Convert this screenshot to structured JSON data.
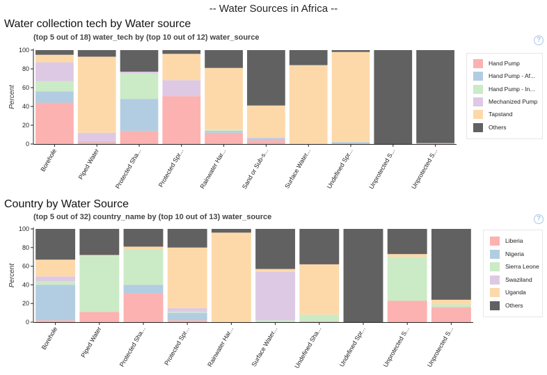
{
  "page_title": "-- Water Sources in Africa --",
  "colors": {
    "hand_pump": "#fcb2b0",
    "blue": "#b2cde2",
    "green": "#cbeac6",
    "purple": "#dec9e4",
    "orange": "#fdd9aa",
    "others": "#616161"
  },
  "chart_data": [
    {
      "type": "bar",
      "stacked": true,
      "title": "Water collection tech by Water source",
      "subtitle": "(top 5 out of 18) water_tech by (top 10 out of 12) water_source",
      "ylabel": "Percent",
      "ylim": [
        0,
        100
      ],
      "yticks": [
        0,
        20,
        40,
        60,
        80,
        100
      ],
      "legend_position": "right",
      "categories": [
        "Borehole",
        "Piped Water",
        "Protected Sha...",
        "Protected Spr...",
        "Rainwater Har...",
        "Sand or Sub-s...",
        "Surface Water...",
        "Undefined Spr...",
        "Unprotected S...",
        "Unprotected S..."
      ],
      "series": [
        {
          "name": "Hand Pump",
          "color": "#fcb2b0",
          "values": [
            44,
            2,
            14,
            51,
            12,
            4,
            0,
            0,
            0,
            1
          ]
        },
        {
          "name": "Hand Pump - Af...",
          "color": "#b2cde2",
          "values": [
            12,
            1,
            34,
            0,
            2,
            2,
            0,
            2,
            0,
            0
          ]
        },
        {
          "name": "Hand Pump - In...",
          "color": "#cbeac6",
          "values": [
            11,
            0,
            27,
            0,
            1,
            0,
            0,
            0,
            0,
            0
          ]
        },
        {
          "name": "Mechanized Pump",
          "color": "#dec9e4",
          "values": [
            20,
            9,
            2,
            17,
            0,
            1,
            0,
            0,
            0,
            0
          ]
        },
        {
          "name": "Tapstand",
          "color": "#fdd9aa",
          "values": [
            8,
            81,
            0,
            28,
            66,
            34,
            84,
            96,
            0,
            0
          ]
        },
        {
          "name": "Others",
          "color": "#616161",
          "values": [
            5,
            7,
            23,
            4,
            19,
            59,
            16,
            2,
            100,
            99
          ]
        }
      ]
    },
    {
      "type": "bar",
      "stacked": true,
      "title": "Country by Water Source",
      "subtitle": "(top 5 out of 32) country_name by (top 10 out of 13) water_source",
      "ylabel": "Percent",
      "ylim": [
        0,
        100
      ],
      "yticks": [
        0,
        20,
        40,
        60,
        80,
        100
      ],
      "legend_position": "right",
      "categories": [
        "Borehole",
        "Piped Water",
        "Protected Sha...",
        "Protected Spr...",
        "Rainwater Har...",
        "Surface Water...",
        "Undefined Sha...",
        "Undefined Spr...",
        "Unprotected S...",
        "Unprotected S..."
      ],
      "series": [
        {
          "name": "Liberia",
          "color": "#fcb2b0",
          "values": [
            2,
            11,
            31,
            2,
            0,
            0,
            1,
            0,
            23,
            16
          ]
        },
        {
          "name": "Nigeria",
          "color": "#b2cde2",
          "values": [
            38,
            0,
            9,
            8,
            0,
            0,
            0,
            0,
            0,
            0
          ]
        },
        {
          "name": "Sierra Leone",
          "color": "#cbeac6",
          "values": [
            4,
            60,
            38,
            1,
            0,
            2,
            7,
            0,
            47,
            3
          ]
        },
        {
          "name": "Swaziland",
          "color": "#dec9e4",
          "values": [
            5,
            0,
            0,
            4,
            0,
            52,
            0,
            0,
            0,
            0
          ]
        },
        {
          "name": "Uganda",
          "color": "#fdd9aa",
          "values": [
            18,
            1,
            3,
            65,
            96,
            3,
            54,
            0,
            3,
            5
          ]
        },
        {
          "name": "Others",
          "color": "#616161",
          "values": [
            33,
            28,
            19,
            20,
            4,
            43,
            38,
            100,
            27,
            76
          ]
        }
      ]
    }
  ]
}
